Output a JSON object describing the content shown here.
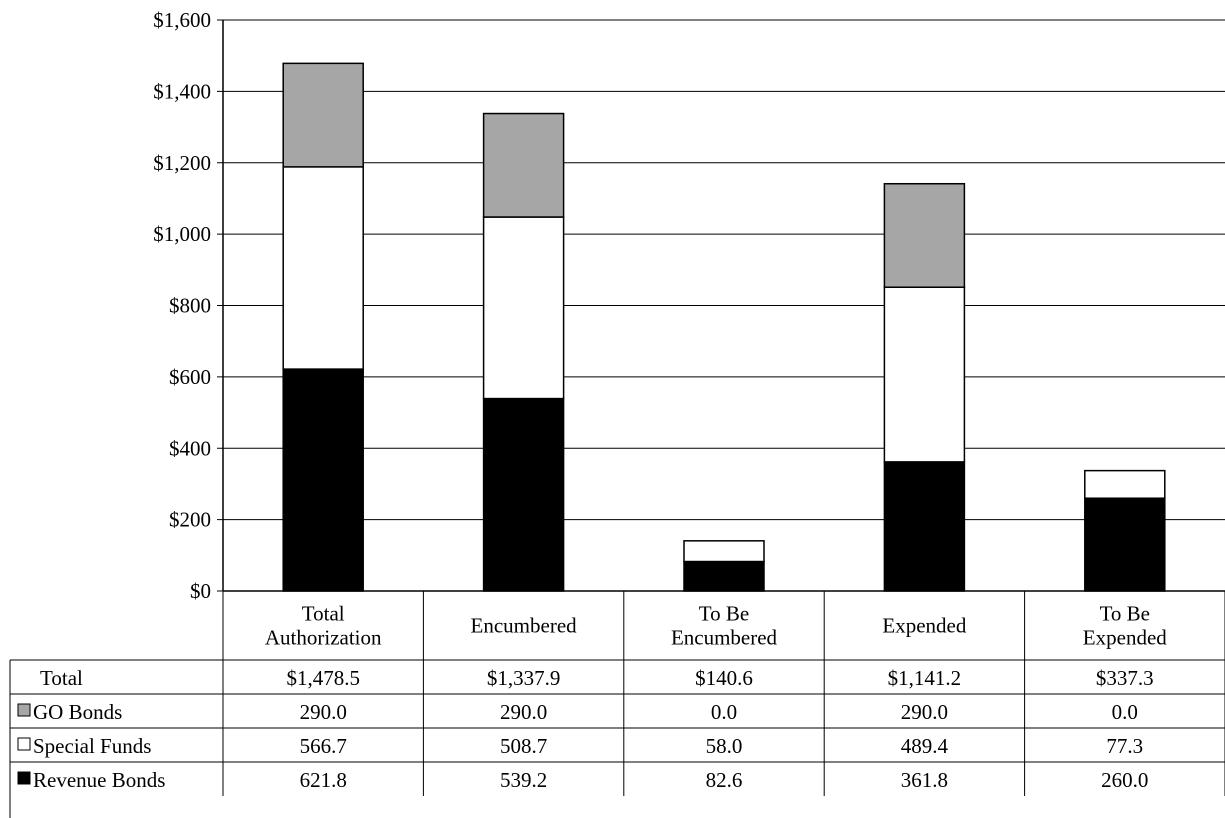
{
  "chart_data": {
    "type": "bar",
    "stacked": true,
    "categories": [
      [
        "Total",
        "Authorization"
      ],
      [
        "Encumbered"
      ],
      [
        "To Be",
        "Encumbered"
      ],
      [
        "Expended"
      ],
      [
        "To Be",
        "Expended"
      ]
    ],
    "series": [
      {
        "name": "Revenue Bonds",
        "color": "#000000",
        "values": [
          621.8,
          539.2,
          82.6,
          361.8,
          260.0
        ],
        "labels": [
          "621.8",
          "539.2",
          "82.6",
          "361.8",
          "260.0"
        ]
      },
      {
        "name": "Special Funds",
        "color": "#ffffff",
        "values": [
          566.7,
          508.7,
          58.0,
          489.4,
          77.3
        ],
        "labels": [
          "566.7",
          "508.7",
          "58.0",
          "489.4",
          "77.3"
        ]
      },
      {
        "name": "GO Bonds",
        "color": "#a6a6a6",
        "values": [
          290.0,
          290.0,
          0.0,
          290.0,
          0.0
        ],
        "labels": [
          "290.0",
          "290.0",
          "0.0",
          "290.0",
          "0.0"
        ]
      }
    ],
    "totals": {
      "name": "Total",
      "labels": [
        "$1,478.5",
        "$1,337.9",
        "$140.6",
        "$1,141.2",
        "$337.3"
      ]
    },
    "table_row_order": [
      "totals",
      "GO Bonds",
      "Special Funds",
      "Revenue Bonds"
    ],
    "ylim": [
      0,
      1600
    ],
    "yticks": [
      0,
      200,
      400,
      600,
      800,
      1000,
      1200,
      1400,
      1600
    ],
    "ytick_labels": [
      "$0",
      "$200",
      "$400",
      "$600",
      "$800",
      "$1,000",
      "$1,200",
      "$1,400",
      "$1,600"
    ],
    "grid": true,
    "legend": "data table"
  }
}
